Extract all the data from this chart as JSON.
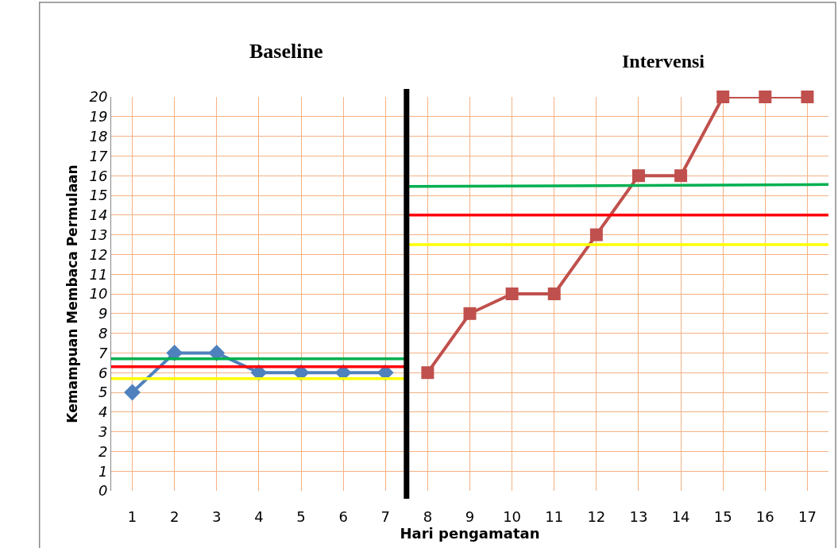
{
  "chart_data": {
    "type": "line",
    "xlabel": "Hari pengamatan",
    "ylabel": "Kemampuan Membaca Permulaan",
    "annotations": [
      "Baseline",
      "Intervensi"
    ],
    "xlim": [
      0.5,
      17.5
    ],
    "xticks": [
      1,
      2,
      3,
      4,
      5,
      6,
      7,
      8,
      9,
      10,
      11,
      12,
      13,
      14,
      15,
      16,
      17
    ],
    "ylim": [
      0,
      20
    ],
    "yticks": [
      0,
      1,
      2,
      3,
      4,
      5,
      6,
      7,
      8,
      9,
      10,
      11,
      12,
      13,
      14,
      15,
      16,
      17,
      18,
      19,
      20
    ],
    "grid": true,
    "line_style": "solid",
    "ref_lines": [
      {
        "axis": "x",
        "value": 7.5,
        "color": "#000000"
      }
    ],
    "series": [
      {
        "color": "#4f81bd",
        "marker": "diamond",
        "x": [
          1,
          2,
          3,
          4,
          5,
          6,
          7
        ],
        "values": [
          5,
          7,
          7,
          6,
          6,
          6,
          6
        ]
      },
      {
        "color": "#c0504d",
        "marker": "square",
        "x": [
          8,
          9,
          10,
          11,
          12,
          13,
          14,
          15,
          16,
          17
        ],
        "values": [
          6,
          9,
          10,
          10,
          13,
          16,
          16,
          20,
          20,
          20
        ]
      },
      {
        "color": "#00b050",
        "marker": "none",
        "x": [
          0.5,
          7.5
        ],
        "values": [
          6.7,
          6.7
        ]
      },
      {
        "color": "#ff0000",
        "marker": "none",
        "x": [
          0.5,
          7.5
        ],
        "values": [
          6.3,
          6.3
        ]
      },
      {
        "color": "#ffff00",
        "marker": "none",
        "x": [
          0.5,
          7.5
        ],
        "values": [
          5.7,
          5.7
        ]
      },
      {
        "color": "#00b050",
        "marker": "none",
        "x": [
          7.5,
          17.5
        ],
        "values": [
          15.45,
          15.55
        ]
      },
      {
        "color": "#ff0000",
        "marker": "none",
        "x": [
          7.5,
          17.5
        ],
        "values": [
          14,
          14
        ]
      },
      {
        "color": "#ffff00",
        "marker": "none",
        "x": [
          7.5,
          17.5
        ],
        "values": [
          12.5,
          12.5
        ]
      }
    ]
  }
}
